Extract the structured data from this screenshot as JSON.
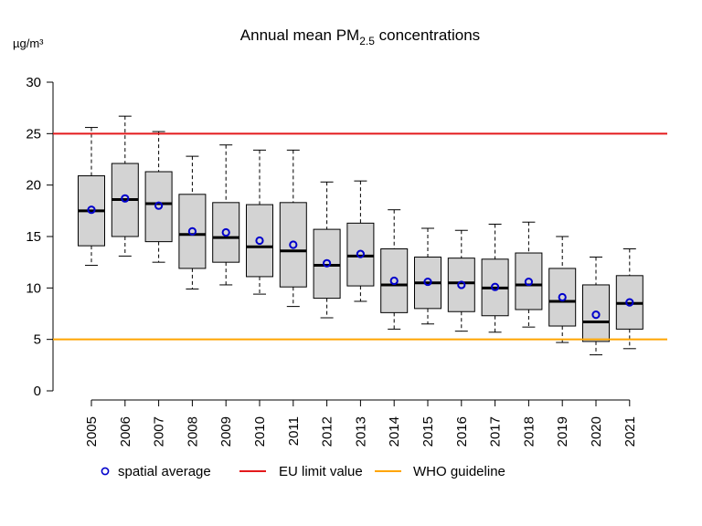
{
  "chart_data": {
    "type": "boxplot",
    "title": {
      "prefix": "Annual mean PM",
      "subscript": "2.5",
      "suffix": " concentrations"
    },
    "ylabel": "µg/m³",
    "ylim": [
      0,
      30
    ],
    "yticks": [
      "0",
      "5",
      "10",
      "15",
      "20",
      "25",
      "30"
    ],
    "categories": [
      "2005",
      "2006",
      "2007",
      "2008",
      "2009",
      "2010",
      "2011",
      "2012",
      "2013",
      "2014",
      "2015",
      "2016",
      "2017",
      "2018",
      "2019",
      "2020",
      "2021"
    ],
    "boxes": [
      {
        "year": "2005",
        "whisker_low": 12.2,
        "q1": 14.1,
        "median": 17.5,
        "q3": 20.9,
        "whisker_high": 25.6,
        "mean": 17.6
      },
      {
        "year": "2006",
        "whisker_low": 13.1,
        "q1": 15.0,
        "median": 18.6,
        "q3": 22.1,
        "whisker_high": 26.7,
        "mean": 18.7
      },
      {
        "year": "2007",
        "whisker_low": 12.5,
        "q1": 14.5,
        "median": 18.2,
        "q3": 21.3,
        "whisker_high": 25.2,
        "mean": 18.0
      },
      {
        "year": "2008",
        "whisker_low": 9.9,
        "q1": 11.9,
        "median": 15.2,
        "q3": 19.1,
        "whisker_high": 22.8,
        "mean": 15.5
      },
      {
        "year": "2009",
        "whisker_low": 10.3,
        "q1": 12.5,
        "median": 14.9,
        "q3": 18.3,
        "whisker_high": 23.9,
        "mean": 15.4
      },
      {
        "year": "2010",
        "whisker_low": 9.4,
        "q1": 11.1,
        "median": 14.0,
        "q3": 18.1,
        "whisker_high": 23.4,
        "mean": 14.6
      },
      {
        "year": "2011",
        "whisker_low": 8.2,
        "q1": 10.1,
        "median": 13.6,
        "q3": 18.3,
        "whisker_high": 23.4,
        "mean": 14.2
      },
      {
        "year": "2012",
        "whisker_low": 7.1,
        "q1": 9.0,
        "median": 12.2,
        "q3": 15.7,
        "whisker_high": 20.3,
        "mean": 12.4
      },
      {
        "year": "2013",
        "whisker_low": 8.7,
        "q1": 10.2,
        "median": 13.1,
        "q3": 16.3,
        "whisker_high": 20.4,
        "mean": 13.3
      },
      {
        "year": "2014",
        "whisker_low": 6.0,
        "q1": 7.6,
        "median": 10.3,
        "q3": 13.8,
        "whisker_high": 17.6,
        "mean": 10.7
      },
      {
        "year": "2015",
        "whisker_low": 6.5,
        "q1": 8.0,
        "median": 10.5,
        "q3": 13.0,
        "whisker_high": 15.8,
        "mean": 10.6
      },
      {
        "year": "2016",
        "whisker_low": 5.8,
        "q1": 7.7,
        "median": 10.5,
        "q3": 12.9,
        "whisker_high": 15.6,
        "mean": 10.3
      },
      {
        "year": "2017",
        "whisker_low": 5.7,
        "q1": 7.3,
        "median": 10.0,
        "q3": 12.8,
        "whisker_high": 16.2,
        "mean": 10.1
      },
      {
        "year": "2018",
        "whisker_low": 6.2,
        "q1": 7.9,
        "median": 10.3,
        "q3": 13.4,
        "whisker_high": 16.4,
        "mean": 10.6
      },
      {
        "year": "2019",
        "whisker_low": 4.7,
        "q1": 6.3,
        "median": 8.7,
        "q3": 11.9,
        "whisker_high": 15.0,
        "mean": 9.1
      },
      {
        "year": "2020",
        "whisker_low": 3.5,
        "q1": 4.8,
        "median": 6.7,
        "q3": 10.3,
        "whisker_high": 13.0,
        "mean": 7.4
      },
      {
        "year": "2021",
        "whisker_low": 4.1,
        "q1": 6.0,
        "median": 8.5,
        "q3": 11.2,
        "whisker_high": 13.8,
        "mean": 8.6
      }
    ],
    "reference_lines": [
      {
        "name": "EU limit value",
        "value": 25,
        "color": "#e41a1c"
      },
      {
        "name": "WHO guideline",
        "value": 5,
        "color": "#ffa500"
      }
    ],
    "mean_marker": {
      "name": "spatial average",
      "color": "#0000cc"
    },
    "box_fill": "#d3d3d3",
    "legend": {
      "position": "bottom",
      "items": [
        "spatial average",
        "EU limit value",
        "WHO guideline"
      ]
    }
  }
}
